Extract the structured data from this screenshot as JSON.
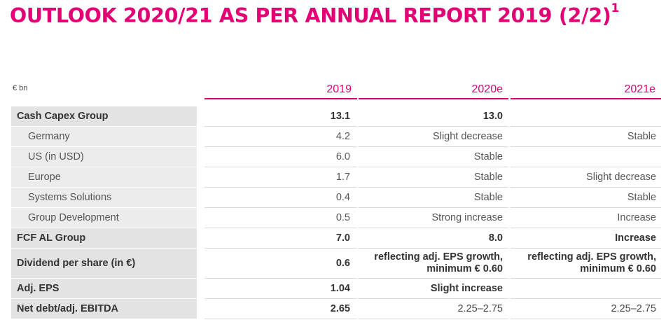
{
  "title": "OUTLOOK 2020/21 AS PER ANNUAL REPORT 2019 (2/2)",
  "title_footnote": "1",
  "unit_label": "€ bn",
  "colors": {
    "accent": "#e20074",
    "label_bg": "#e3e3e3"
  },
  "columns": [
    "2019",
    "2020e",
    "2021e"
  ],
  "rows": [
    {
      "label": "Cash Capex Group",
      "v2019": "13.1",
      "v2020": "13.0",
      "v2021": ""
    },
    {
      "label": "Germany",
      "v2019": "4.2",
      "v2020": "Slight decrease",
      "v2021": "Stable"
    },
    {
      "label": "US (in USD)",
      "v2019": "6.0",
      "v2020": "Stable",
      "v2021": ""
    },
    {
      "label": "Europe",
      "v2019": "1.7",
      "v2020": "Stable",
      "v2021": "Slight decrease"
    },
    {
      "label": "Systems Solutions",
      "v2019": "0.4",
      "v2020": "Stable",
      "v2021": "Stable"
    },
    {
      "label": "Group Development",
      "v2019": "0.5",
      "v2020": "Strong increase",
      "v2021": "Increase"
    },
    {
      "label": "FCF AL Group",
      "v2019": "7.0",
      "v2020": "8.0",
      "v2021": "Increase"
    },
    {
      "label": "Dividend per share (in €)",
      "v2019": "0.6",
      "v2020": "reflecting adj. EPS growth, minimum € 0.60",
      "v2021": "reflecting adj. EPS growth, minimum € 0.60"
    },
    {
      "label": "Adj. EPS",
      "v2019": "1.04",
      "v2020": "Slight increase",
      "v2021": ""
    },
    {
      "label": "Net debt/adj. EBITDA",
      "v2019": "2.65",
      "v2020": "2.25–2.75",
      "v2021": "2.25–2.75"
    }
  ]
}
